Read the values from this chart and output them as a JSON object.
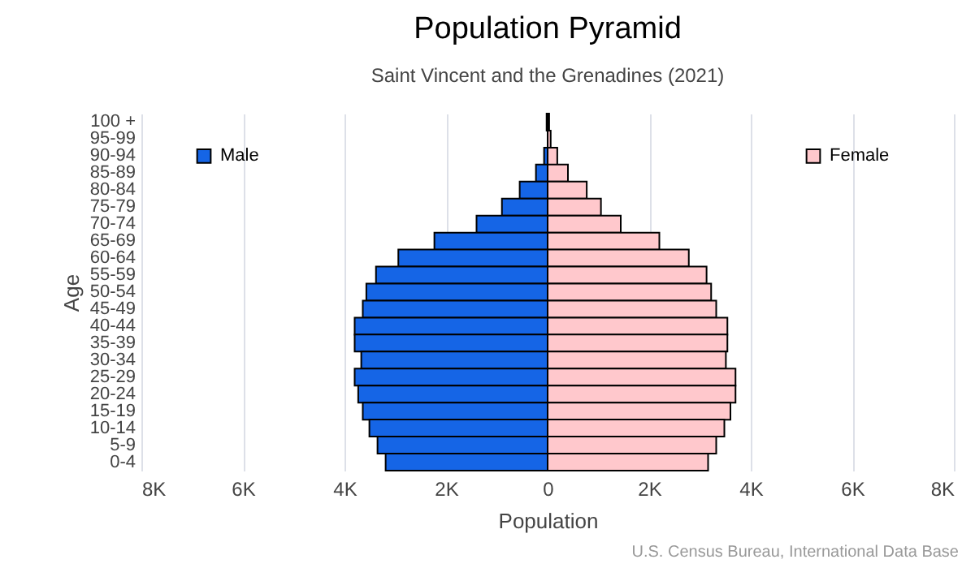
{
  "chart_data": {
    "type": "bar",
    "orientation": "horizontal",
    "stacked": true,
    "title": "Population Pyramid",
    "subtitle": "Saint Vincent and the Grenadines (2021)",
    "xlabel": "Population",
    "ylabel": "Age",
    "annotations": [
      "U.S. Census Bureau, International Data Base"
    ],
    "categories": [
      "100 +",
      "95-99",
      "90-94",
      "85-89",
      "80-84",
      "75-79",
      "70-74",
      "65-69",
      "60-64",
      "55-59",
      "50-54",
      "45-49",
      "40-44",
      "35-39",
      "30-34",
      "25-29",
      "20-24",
      "15-19",
      "10-14",
      "5-9",
      "0-4"
    ],
    "series": [
      {
        "name": "Male",
        "color": "#1565e6",
        "values": [
          -20,
          null,
          -70,
          -230,
          -550,
          -900,
          -1400,
          -2230,
          -2940,
          -3380,
          -3570,
          -3640,
          -3800,
          -3800,
          -3670,
          -3800,
          -3730,
          -3640,
          -3510,
          -3350,
          -3190
        ]
      },
      {
        "name": "Female",
        "color": "#ffc8cc",
        "values": [
          30,
          60,
          190,
          400,
          770,
          1050,
          1440,
          2200,
          2780,
          3130,
          3220,
          3320,
          3540,
          3540,
          3510,
          3700,
          3700,
          3600,
          3480,
          3320,
          3160
        ]
      }
    ],
    "xlim": [
      -8000,
      8000
    ],
    "xticks": [
      {
        "value": -8000,
        "label": "8K"
      },
      {
        "value": -6000,
        "label": "6K"
      },
      {
        "value": -4000,
        "label": "4K"
      },
      {
        "value": -2000,
        "label": "2K"
      },
      0,
      {
        "value": 2000,
        "label": "2K"
      },
      {
        "value": 4000,
        "label": "4K"
      },
      {
        "value": 6000,
        "label": "6K"
      },
      {
        "value": 8000,
        "label": "8K"
      }
    ],
    "grid": "x",
    "legend": "top"
  }
}
